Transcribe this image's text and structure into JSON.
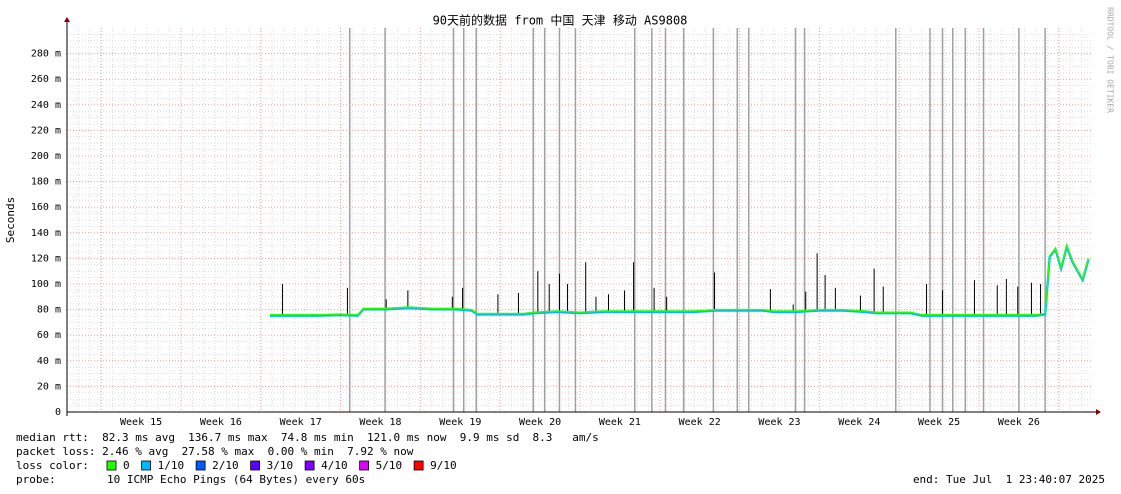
{
  "chart_data": {
    "type": "line",
    "title": "90天前的数据 from 中国 天津 移动 AS9808",
    "y_label": "Seconds",
    "side_label": "RRDTOOL / TOBI OETIKER",
    "xlim": [
      0,
      90
    ],
    "xticks": [
      {
        "value": 6.5,
        "label": "Week 15"
      },
      {
        "value": 13.5,
        "label": "Week 16"
      },
      {
        "value": 20.5,
        "label": "Week 17"
      },
      {
        "value": 27.5,
        "label": "Week 18"
      },
      {
        "value": 34.5,
        "label": "Week 19"
      },
      {
        "value": 41.5,
        "label": "Week 20"
      },
      {
        "value": 48.5,
        "label": "Week 21"
      },
      {
        "value": 55.5,
        "label": "Week 22"
      },
      {
        "value": 62.5,
        "label": "Week 23"
      },
      {
        "value": 69.5,
        "label": "Week 24"
      },
      {
        "value": 76.5,
        "label": "Week 25"
      },
      {
        "value": 83.5,
        "label": "Week 26"
      }
    ],
    "ylim": [
      0,
      300
    ],
    "yticks": [
      0,
      {
        "value": 20,
        "label": "20 m"
      },
      {
        "value": 40,
        "label": "40 m"
      },
      {
        "value": 60,
        "label": "60 m"
      },
      {
        "value": 80,
        "label": "80 m"
      },
      {
        "value": 100,
        "label": "100 m"
      },
      {
        "value": 120,
        "label": "120 m"
      },
      {
        "value": 140,
        "label": "140 m"
      },
      {
        "value": 160,
        "label": "160 m"
      },
      {
        "value": 180,
        "label": "180 m"
      },
      {
        "value": 200,
        "label": "200 m"
      },
      {
        "value": 220,
        "label": "220 m"
      },
      {
        "value": 240,
        "label": "240 m"
      },
      {
        "value": 260,
        "label": "260 m"
      },
      {
        "value": 280,
        "label": "280 m"
      }
    ],
    "grid": true,
    "series": [
      {
        "color": "#26ff00",
        "x": [
          17.8,
          20,
          22,
          24,
          25.5,
          26,
          28,
          30,
          32,
          34,
          35.5,
          36,
          38,
          40,
          41,
          43,
          45,
          47,
          49,
          51,
          53,
          55,
          57,
          59,
          61,
          62,
          64,
          66,
          68,
          70,
          71,
          74,
          75,
          77,
          79,
          81,
          83,
          85,
          85.8,
          86.2,
          86.7,
          87.2,
          87.7,
          88.2,
          88.7,
          89.1,
          89.6
        ],
        "values": [
          76,
          76,
          76,
          76.5,
          76,
          81,
          81,
          82,
          81,
          81,
          80,
          77,
          77,
          77,
          78,
          79,
          78,
          79,
          79,
          79,
          79,
          79,
          80,
          80,
          80,
          79,
          79,
          80,
          80,
          79,
          78,
          78,
          76,
          76,
          76,
          76,
          76,
          76,
          77,
          122,
          128,
          113,
          130,
          118,
          110,
          104,
          120
        ]
      }
    ],
    "spikes": {
      "color": "#000000",
      "x": [
        18.9,
        24.6,
        28.0,
        29.9,
        33.8,
        34.7,
        37.8,
        39.6,
        41.3,
        42.3,
        43.2,
        43.9,
        45.5,
        46.4,
        47.5,
        48.9,
        49.7,
        51.5,
        52.6,
        56.8,
        61.7,
        63.7,
        64.8,
        65.8,
        66.5,
        67.4,
        69.6,
        70.8,
        71.6,
        75.4,
        76.8,
        79.6,
        81.6,
        82.4,
        83.4,
        84.6,
        85.4
      ],
      "values": [
        100,
        97,
        88,
        95,
        90,
        97,
        92,
        93,
        110,
        100,
        108,
        100,
        117,
        90,
        92,
        95,
        117,
        97,
        90,
        109,
        96,
        84,
        94,
        124,
        107,
        97,
        91,
        112,
        98,
        100,
        95,
        103,
        99,
        104,
        98,
        101,
        100
      ]
    },
    "outages": {
      "color": "#a0a0a0",
      "x": [
        24.8,
        27.9,
        33.9,
        34.8,
        35.9,
        40.9,
        41.9,
        43.2,
        44.6,
        49.8,
        51.3,
        52.5,
        54.1,
        56.7,
        58.8,
        59.8,
        63.9,
        64.7,
        72.7,
        75.7,
        76.8,
        77.7,
        78.8,
        80.4,
        83.5,
        85.8
      ]
    },
    "stats": [
      "median rtt:  82.3 ms avg  136.7 ms max  74.8 ms min  121.0 ms now  9.9 ms sd  8.3   am/s",
      "packet loss: 2.46 % avg  27.58 % max  0.00 % min  7.92 % now"
    ],
    "loss_label": "loss color:",
    "loss_colors": [
      {
        "label": "0",
        "color": "#26ff00"
      },
      {
        "label": "1/10",
        "color": "#00b8ff"
      },
      {
        "label": "2/10",
        "color": "#0059ff"
      },
      {
        "label": "3/10",
        "color": "#5e00ff"
      },
      {
        "label": "4/10",
        "color": "#7e00ff"
      },
      {
        "label": "5/10",
        "color": "#dd00ff"
      },
      {
        "label": "9/10",
        "color": "#ff0000"
      }
    ],
    "probe_label": "probe:",
    "probe": "10 ICMP Echo Pings (64 Bytes) every 60s",
    "end": "end: Tue Jul  1 23:40:07 2025"
  }
}
